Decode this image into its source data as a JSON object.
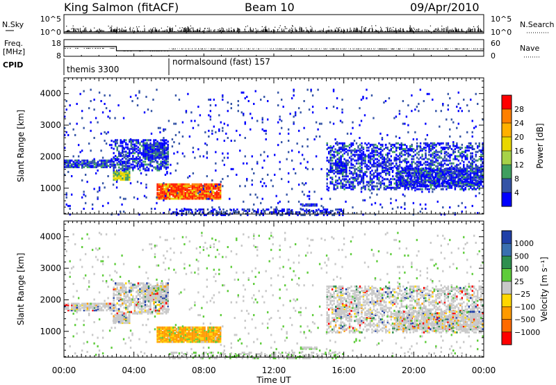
{
  "header": {
    "station": "King Salmon (fitACF)",
    "beam": "Beam 10",
    "date": "09/Apr/2010"
  },
  "top_panels": {
    "nsky_label": "N.Sky",
    "nsearch_label": "N.Search",
    "nsky_ticks": [
      "10^5",
      "10^0"
    ],
    "nsearch_ticks": [
      "10^5",
      "10^0"
    ],
    "freq_label_1": "Freq.",
    "freq_label_2": "[MHz]",
    "freq_ticks": [
      "18",
      "8"
    ],
    "nave_label": "Nave",
    "nave_ticks": [
      "60",
      "0"
    ],
    "cpid_label": "CPID",
    "cpid_segments": [
      {
        "label": "themis 3300",
        "start_h": 0,
        "end_h": 6
      },
      {
        "label": "normalsound (fast) 157",
        "start_h": 6,
        "end_h": 24
      }
    ]
  },
  "chart_data": [
    {
      "type": "heatmap",
      "name": "power",
      "ylabel": "Slant Range [km]",
      "ylim": [
        180,
        4500
      ],
      "yticks": [
        1000,
        2000,
        3000,
        4000
      ],
      "xlim": [
        0,
        24
      ],
      "colorbar_label": "Power [dB]",
      "colorbar_ticks": [
        "28",
        "24",
        "20",
        "16",
        "12",
        "8",
        "4"
      ],
      "colorbar_colors": [
        "#ff0000",
        "#ff7f00",
        "#ffb000",
        "#e9d700",
        "#a6d248",
        "#3f9f5f",
        "#3454a6",
        "#0000ff"
      ]
    },
    {
      "type": "heatmap",
      "name": "velocity",
      "ylabel": "Slant Range [km]",
      "ylim": [
        180,
        4500
      ],
      "yticks": [
        1000,
        2000,
        3000,
        4000
      ],
      "xlim": [
        0,
        24
      ],
      "colorbar_label": "Velocity [m s⁻¹]",
      "colorbar_ticks": [
        "1000",
        "500",
        "100",
        "25",
        "−25",
        "−100",
        "−500",
        "−1000"
      ],
      "colorbar_colors": [
        "#2040a8",
        "#3a70b0",
        "#2e8f4f",
        "#5ecc3a",
        "#c8c8c8",
        "#ffd700",
        "#ff9a00",
        "#ff6a00",
        "#ff0000"
      ]
    }
  ],
  "x_axis": {
    "ticks": [
      "00:00",
      "04:00",
      "08:00",
      "12:00",
      "16:00",
      "20:00",
      "00:00"
    ],
    "label": "Time UT"
  }
}
